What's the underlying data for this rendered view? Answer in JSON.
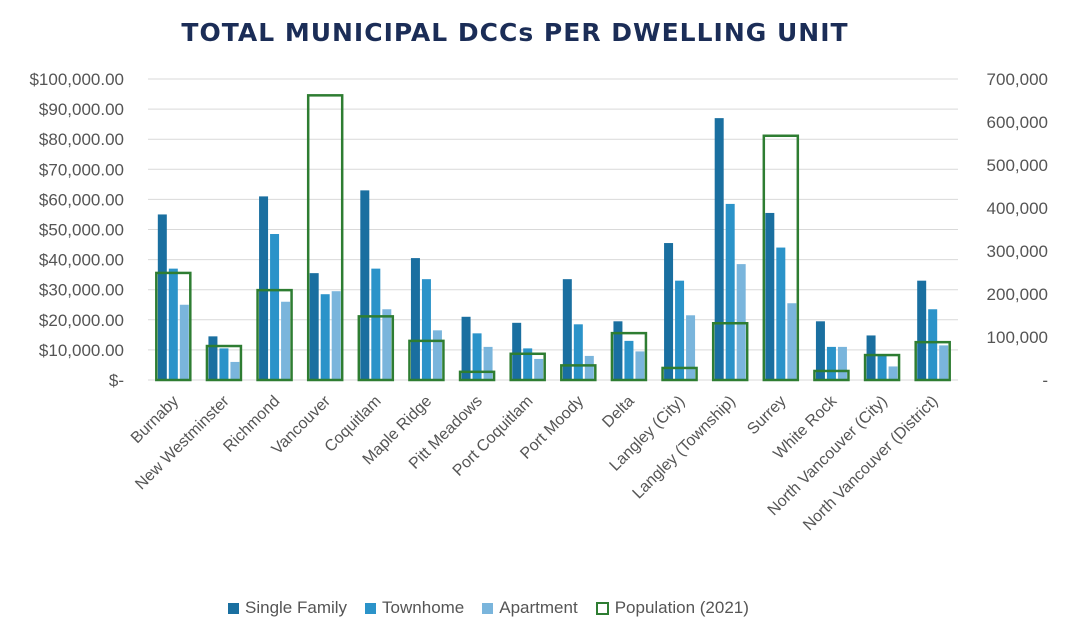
{
  "chart_data": {
    "type": "bar",
    "title": "TOTAL MUNICIPAL DCCs PER DWELLING UNIT",
    "categories": [
      "Burnaby",
      "New Westminster",
      "Richmond",
      "Vancouver",
      "Coquitlam",
      "Maple Ridge",
      "Pitt Meadows",
      "Port Coquitlam",
      "Port Moody",
      "Delta",
      "Langley (City)",
      "Langley (Township)",
      "Surrey",
      "White Rock",
      "North Vancouver (City)",
      "North Vancouver (District)"
    ],
    "series": [
      {
        "name": "Single Family",
        "axis": "left",
        "color": "#1a6fa0",
        "values": [
          55000,
          14500,
          61000,
          35500,
          63000,
          40500,
          21000,
          19000,
          33500,
          19500,
          45500,
          87000,
          55500,
          19500,
          14800,
          33000
        ]
      },
      {
        "name": "Townhome",
        "axis": "left",
        "color": "#2b93c9",
        "values": [
          37000,
          10500,
          48500,
          28500,
          37000,
          33500,
          15500,
          10500,
          18500,
          13000,
          33000,
          58500,
          44000,
          11000,
          8500,
          23500
        ]
      },
      {
        "name": "Apartment",
        "axis": "left",
        "color": "#7ab5dc",
        "values": [
          25000,
          6000,
          26000,
          29500,
          23500,
          16500,
          11000,
          7000,
          8000,
          9500,
          21500,
          38500,
          25500,
          11000,
          4500,
          11500
        ]
      },
      {
        "name": "Population (2021)",
        "axis": "right",
        "style": "outline",
        "color": "#2e7d32",
        "values": [
          249000,
          79000,
          209000,
          662000,
          148000,
          91000,
          19000,
          61000,
          34000,
          109000,
          28000,
          132000,
          568000,
          21000,
          58000,
          88000
        ]
      }
    ],
    "y_left": {
      "min": 0,
      "max": 100000,
      "step": 10000,
      "tick_labels": [
        "$-",
        "$10,000.00",
        "$20,000.00",
        "$30,000.00",
        "$40,000.00",
        "$50,000.00",
        "$60,000.00",
        "$70,000.00",
        "$80,000.00",
        "$90,000.00",
        "$100,000.00"
      ]
    },
    "y_right": {
      "min": 0,
      "max": 700000,
      "step": 100000,
      "tick_labels": [
        "-",
        "100,000",
        "200,000",
        "300,000",
        "400,000",
        "500,000",
        "600,000",
        "700,000"
      ]
    },
    "grid": true,
    "legend_position": "bottom"
  }
}
